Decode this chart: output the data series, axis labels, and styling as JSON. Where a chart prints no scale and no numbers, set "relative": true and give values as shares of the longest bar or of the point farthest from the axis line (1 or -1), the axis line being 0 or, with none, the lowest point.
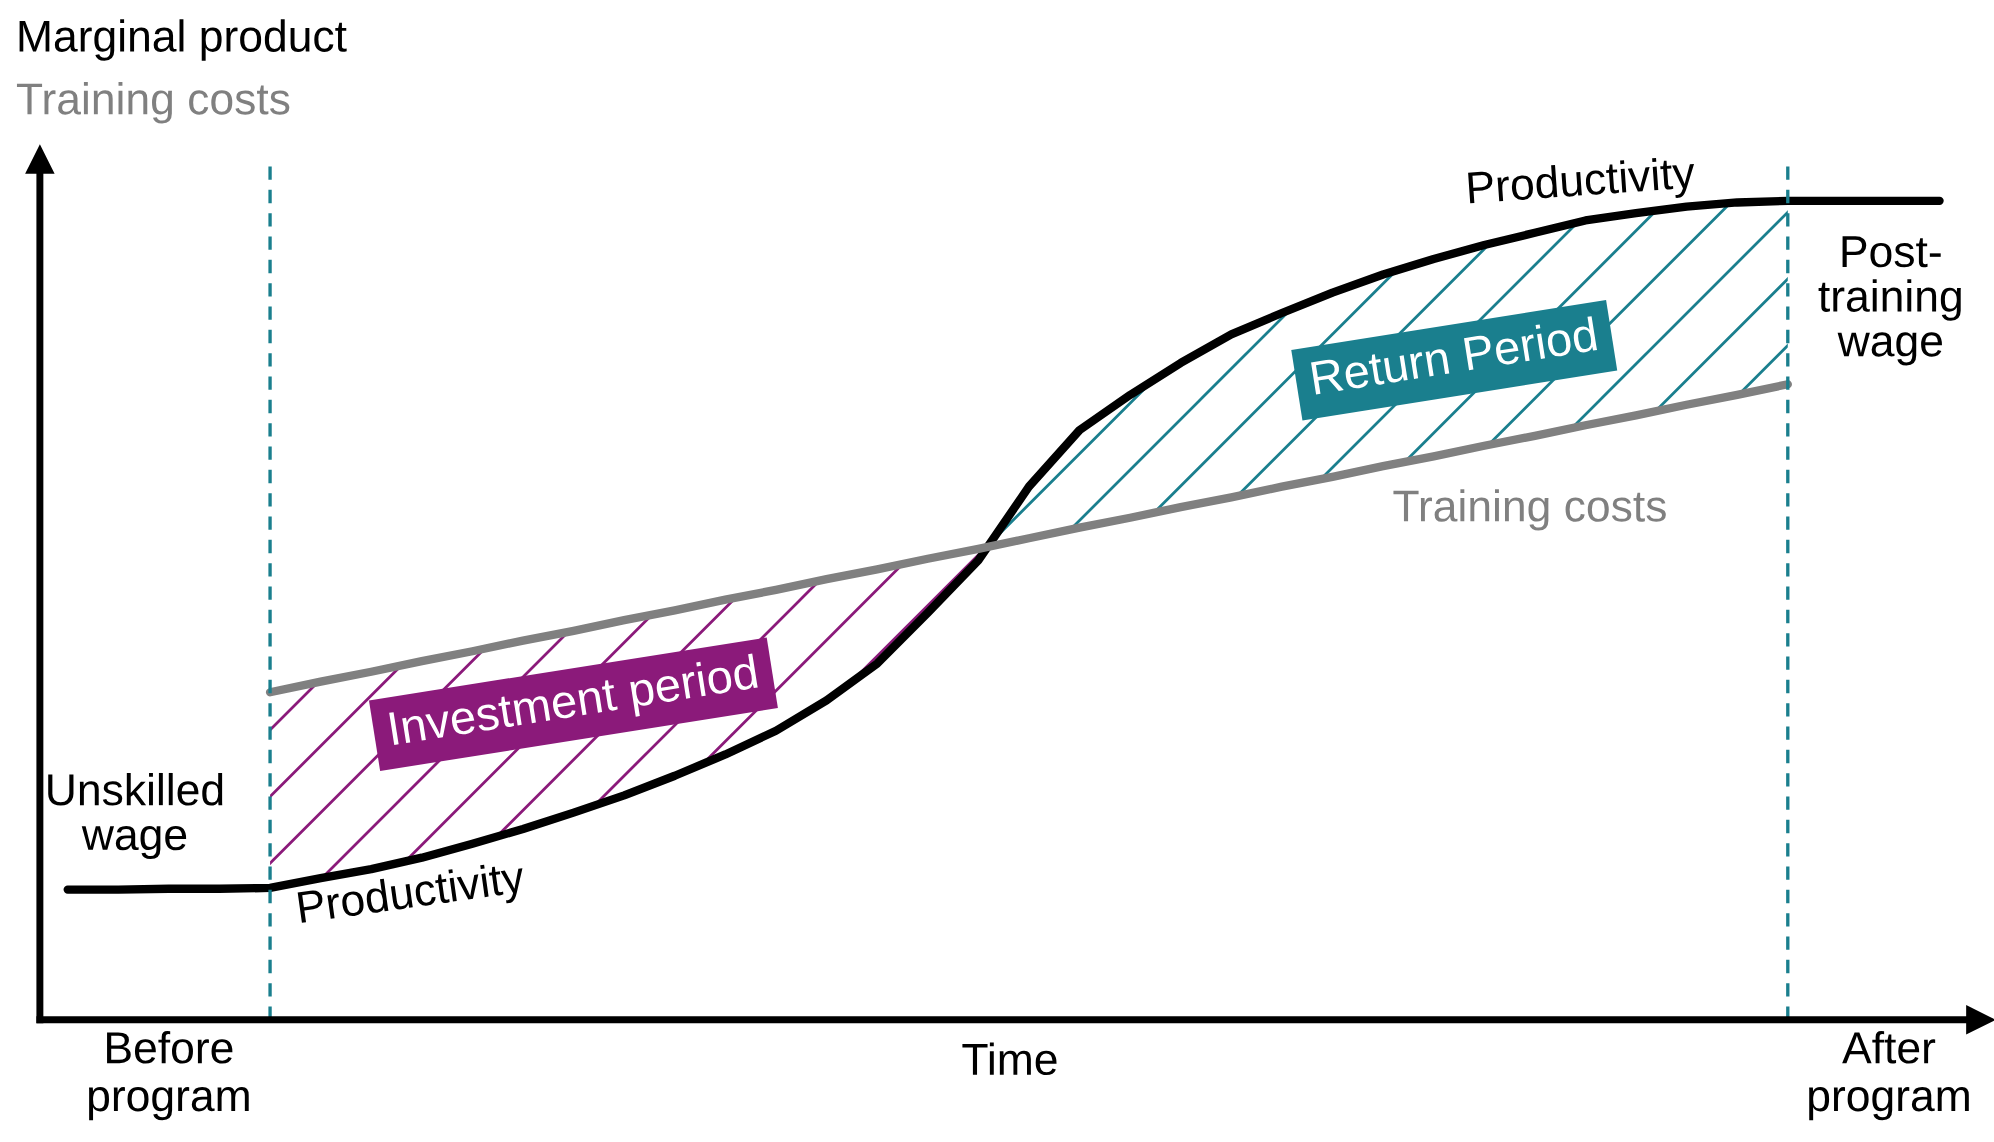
{
  "chart_data": {
    "type": "line",
    "relative": true,
    "xlabel": "Time",
    "ylabel": "Marginal product",
    "categories": [
      null,
      null,
      "Before\nprogram",
      null,
      null,
      null,
      null,
      null,
      null,
      null,
      null,
      null,
      null,
      null,
      null,
      null,
      null,
      null,
      null,
      null,
      null,
      null,
      null,
      null,
      null,
      null,
      null,
      null,
      null,
      null,
      null,
      null,
      null,
      null,
      null,
      null,
      "After\nprogram",
      null
    ],
    "series": [
      {
        "color": "#000000",
        "values": [
          0.159,
          0.159,
          0.16,
          0.16,
          0.161,
          0.173,
          0.184,
          0.198,
          0.215,
          0.233,
          0.253,
          0.274,
          0.298,
          0.324,
          0.353,
          0.39,
          0.435,
          0.497,
          0.561,
          0.651,
          0.72,
          0.763,
          0.802,
          0.837,
          0.863,
          0.888,
          0.91,
          0.929,
          0.946,
          0.961,
          0.976,
          0.985,
          0.993,
          0.998,
          1.0,
          1.0,
          1.0,
          1.0
        ]
      },
      {
        "color": "#808080",
        "values": [
          null,
          null,
          null,
          null,
          0.4,
          0.413,
          0.425,
          0.438,
          0.45,
          0.463,
          0.475,
          0.488,
          0.5,
          0.513,
          0.525,
          0.538,
          0.55,
          0.563,
          0.575,
          0.588,
          0.601,
          0.613,
          0.626,
          0.638,
          0.651,
          0.663,
          0.676,
          0.688,
          0.701,
          0.713,
          0.726,
          0.738,
          0.751,
          0.763,
          0.776,
          null,
          null,
          null
        ]
      }
    ],
    "annotations": [
      "Productivity",
      "Productivity",
      "Training costs",
      "Unskilled\nwage",
      "Post-\ntraining\nwage",
      "Investment period",
      "Return Period",
      "Training costs"
    ]
  }
}
